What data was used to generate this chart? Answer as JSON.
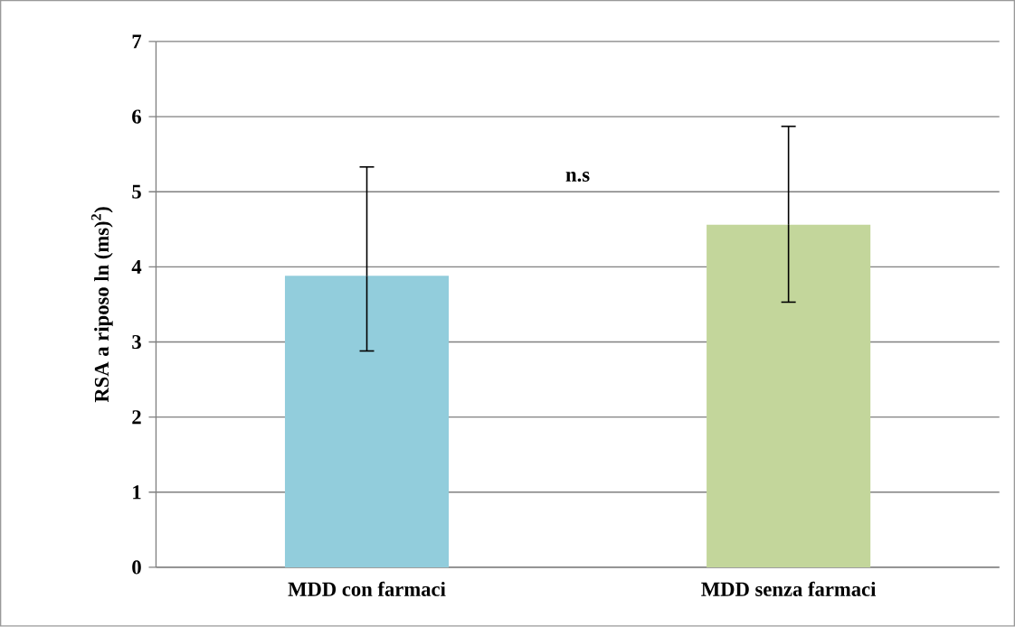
{
  "chart_data": {
    "type": "bar",
    "ylabel": "RSA a riposo ln (ms)$^{2}$)",
    "categories": [
      "MDD con farmaci",
      "MDD senza farmaci"
    ],
    "values": [
      3.88,
      4.56
    ],
    "colors": [
      "#92cddc",
      "#c3d69b"
    ],
    "errors": [
      [
        2.88,
        5.33
      ],
      [
        3.53,
        5.87
      ]
    ],
    "ylim": [
      0,
      7
    ],
    "yticks": [
      0,
      1,
      2,
      3,
      4,
      5,
      6,
      7
    ],
    "grid": "y",
    "annotations": [
      "n.s"
    ]
  }
}
